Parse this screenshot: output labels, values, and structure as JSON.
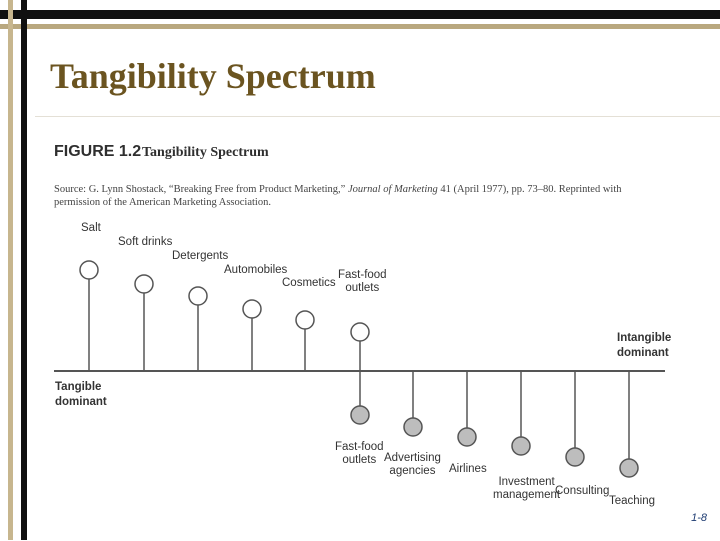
{
  "slide": {
    "title": "Tangibility Spectrum",
    "page_number": "1-8"
  },
  "figure": {
    "label": "FIGURE 1.2",
    "title": "Tangibility Spectrum",
    "source_plain1": "Source: G. Lynn Shostack, “Breaking Free from Product Marketing,” ",
    "source_journal": "Journal of Marketing",
    "source_plain2": " 41 (April 1977), pp. 73–80. Reprinted with permission of the American Marketing Association."
  },
  "spectrum": {
    "left_end": {
      "line1": "Tangible",
      "line2": "dominant"
    },
    "right_end": {
      "line1": "Intangible",
      "line2": "dominant"
    },
    "tangible_items": [
      {
        "label": "Salt"
      },
      {
        "label": "Soft drinks"
      },
      {
        "label": "Detergents"
      },
      {
        "label": "Automobiles"
      },
      {
        "label": "Cosmetics"
      },
      {
        "label": "Fast-food\noutlets"
      }
    ],
    "intangible_items": [
      {
        "label": "Fast-food\noutlets"
      },
      {
        "label": "Advertising\nagencies"
      },
      {
        "label": "Airlines"
      },
      {
        "label": "Investment\nmanagement"
      },
      {
        "label": "Consulting"
      },
      {
        "label": "Teaching"
      }
    ]
  },
  "colors": {
    "title": "#6b5420",
    "circle_above_fill": "#ffffff",
    "circle_below_fill": "#bdbdbd",
    "stroke": "#555555"
  }
}
